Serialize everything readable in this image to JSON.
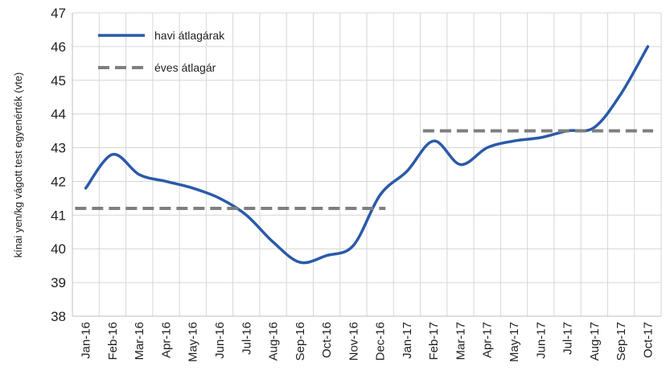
{
  "chart_data": {
    "type": "line",
    "title": "",
    "xlabel": "",
    "ylabel": "kínai yen/kg vágott test egyenérték (vte)",
    "ylim": [
      38,
      47
    ],
    "yticks": [
      38,
      39,
      40,
      41,
      42,
      43,
      44,
      45,
      46,
      47
    ],
    "categories": [
      "Jan-16",
      "Feb-16",
      "Mar-16",
      "Apr-16",
      "May-16",
      "Jun-16",
      "Jul-16",
      "Aug-16",
      "Sep-16",
      "Oct-16",
      "Nov-16",
      "Dec-16",
      "Jan-17",
      "Feb-17",
      "Mar-17",
      "Apr-17",
      "May-17",
      "Jun-17",
      "Jul-17",
      "Aug-17",
      "Sep-17",
      "Oct-17"
    ],
    "grid": "both",
    "legend_position": "top-left",
    "series": [
      {
        "name": "havi átlagárak",
        "style": "solid",
        "color": "#2a5aa8",
        "values": [
          41.8,
          42.8,
          42.2,
          42.0,
          41.8,
          41.5,
          41.0,
          40.2,
          39.6,
          39.8,
          40.1,
          41.6,
          42.3,
          43.2,
          42.5,
          43.0,
          43.2,
          43.3,
          43.5,
          43.6,
          44.6,
          46.0
        ]
      },
      {
        "name": "éves átlagár",
        "style": "dashed",
        "color": "#7f7f7f",
        "segments": [
          {
            "from": "Jan-16",
            "to": "Dec-16",
            "value": 41.2
          },
          {
            "from": "Feb-17",
            "to": "Oct-17",
            "value": 43.5
          }
        ]
      }
    ]
  }
}
